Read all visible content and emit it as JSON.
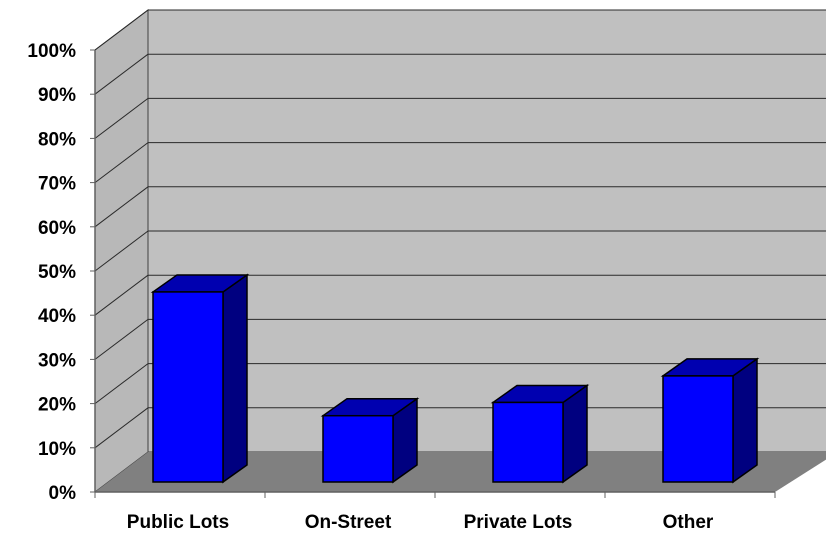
{
  "chart_data": {
    "type": "bar",
    "categories": [
      "Public Lots",
      "On-Street",
      "Private Lots",
      "Other"
    ],
    "values": [
      43,
      15,
      18,
      24
    ],
    "ylim": [
      0,
      100
    ],
    "yticks": [
      "0%",
      "10%",
      "20%",
      "30%",
      "40%",
      "50%",
      "60%",
      "70%",
      "80%",
      "90%",
      "100%"
    ],
    "grid": true,
    "legend": "none",
    "colors": {
      "bar_front": "#0000ff",
      "bar_top": "#0000b0",
      "bar_side": "#000080",
      "wall": "#c0c0c0",
      "side_wall": "#b8b8b8",
      "floor": "#808080",
      "gridline": "#2a2a2a"
    }
  }
}
